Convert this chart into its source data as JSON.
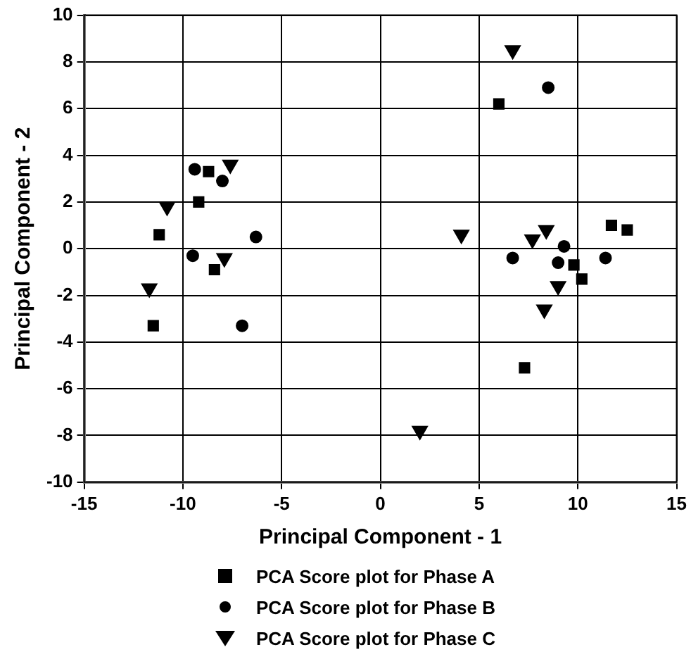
{
  "chart_data": {
    "type": "scatter",
    "xlabel": "Principal Component - 1",
    "ylabel": "Principal Component - 2",
    "xlim": [
      -15,
      15
    ],
    "ylim": [
      -10,
      10
    ],
    "xticks": [
      -15,
      -10,
      -5,
      0,
      5,
      10,
      15
    ],
    "yticks": [
      -10,
      -8,
      -6,
      -4,
      -2,
      0,
      2,
      4,
      6,
      8,
      10
    ],
    "grid": true,
    "legend": "bottom",
    "series": [
      {
        "name": "PCA Score plot  for  Phase A",
        "color": "#000000",
        "marker": "square",
        "x": [
          -8.7,
          -9.2,
          -11.2,
          -8.4,
          -11.5,
          6.0,
          9.8,
          10.2,
          11.7,
          12.5,
          7.3
        ],
        "values": [
          3.3,
          2.0,
          0.6,
          -0.9,
          -3.3,
          6.2,
          -0.7,
          -1.3,
          1.0,
          0.8,
          -5.1
        ]
      },
      {
        "name": "PCA Score plot  for  Phase B",
        "color": "#000000",
        "marker": "circle",
        "x": [
          -9.4,
          -8.0,
          -6.3,
          -9.5,
          -7.0,
          8.5,
          9.3,
          6.7,
          9.0,
          11.4
        ],
        "values": [
          3.4,
          2.9,
          0.5,
          -0.3,
          -3.3,
          6.9,
          0.1,
          -0.4,
          -0.6,
          -0.4
        ]
      },
      {
        "name": "PCA Score plot  for  Phase C",
        "color": "#000000",
        "marker": "triangle",
        "x": [
          -7.6,
          -10.8,
          -7.9,
          -11.7,
          6.7,
          4.1,
          7.7,
          8.4,
          9.0,
          8.3,
          2.0
        ],
        "values": [
          3.6,
          1.8,
          -0.4,
          -1.7,
          8.5,
          0.6,
          0.4,
          0.8,
          -1.6,
          -2.6,
          -7.8
        ]
      }
    ]
  }
}
